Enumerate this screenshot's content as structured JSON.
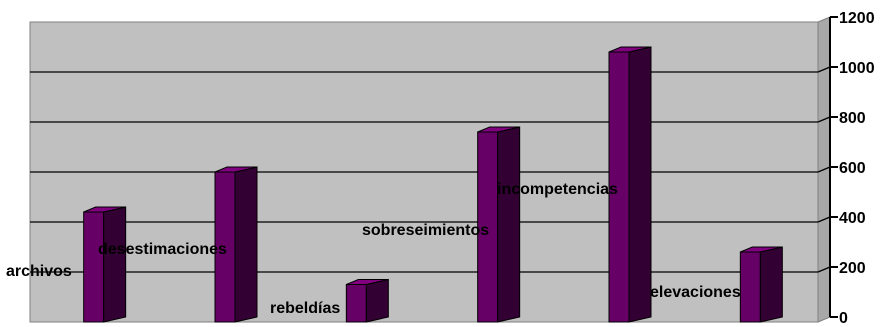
{
  "chart_data": {
    "type": "bar",
    "style": "3d-column",
    "categories": [
      "archivos",
      "desestimaciones",
      "rebeldías",
      "sobreseimientos",
      "incompetencias",
      "elevaciones"
    ],
    "values": [
      440,
      600,
      150,
      760,
      1080,
      280
    ],
    "title": "",
    "xlabel": "",
    "ylabel": "",
    "ylim": [
      0,
      1200
    ],
    "yticks": [
      0,
      200,
      400,
      600,
      800,
      1000,
      1200
    ],
    "yaxis_side": "right",
    "grid": true,
    "legend": "none",
    "colors": {
      "plot_background": "#c0c0c0",
      "bar_front": "#660066",
      "bar_side": "#330033",
      "bar_top": "#800080",
      "gridline": "#000000"
    }
  }
}
